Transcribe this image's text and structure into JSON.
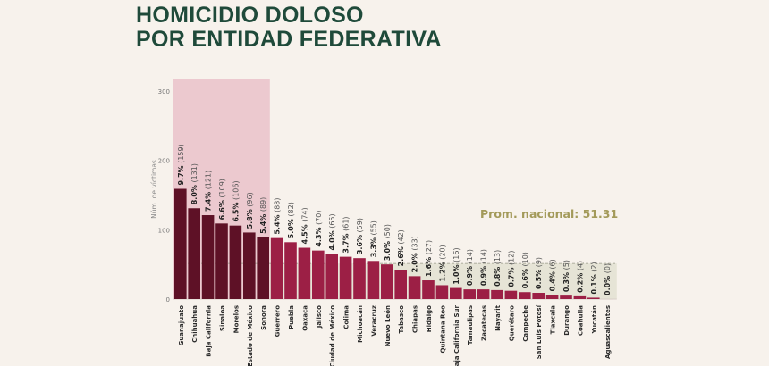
{
  "title": {
    "line1": "HOMICIDIO DOLOSO",
    "line2": "POR ENTIDAD FEDERATIVA"
  },
  "chart_data": {
    "type": "bar",
    "title": "HOMICIDIO DOLOSO POR ENTIDAD FEDERATIVA",
    "ylabel": "Núm. de víctimas",
    "xlabel": "",
    "ylim": [
      0,
      300
    ],
    "yticks": [
      "0",
      "100",
      "200",
      "300"
    ],
    "categories": [
      "Guanajuato",
      "Chihuahua",
      "Baja California",
      "Sinaloa",
      "Morelos",
      "Estado de México",
      "Sonora",
      "Guerrero",
      "Puebla",
      "Oaxaca",
      "Jalisco",
      "Ciudad de México",
      "Colima",
      "Michoacán",
      "Veracruz",
      "Nuevo León",
      "Tabasco",
      "Chiapas",
      "Hidalgo",
      "Quintana Roo",
      "Baja California Sur",
      "Tamaulipas",
      "Zacatecas",
      "Nayarit",
      "Querétaro",
      "Campeche",
      "San Luis Potosí",
      "Tlaxcala",
      "Durango",
      "Coahuila",
      "Yucatán",
      "Aguascalientes"
    ],
    "values": [
      159,
      131,
      121,
      109,
      106,
      96,
      89,
      88,
      82,
      74,
      70,
      65,
      61,
      59,
      55,
      50,
      42,
      33,
      27,
      20,
      16,
      14,
      14,
      13,
      12,
      10,
      9,
      6,
      5,
      4,
      2,
      0
    ],
    "percents": [
      "9.7%",
      "8.0%",
      "7.4%",
      "6.6%",
      "6.5%",
      "5.8%",
      "5.4%",
      "5.4%",
      "5.0%",
      "4.5%",
      "4.3%",
      "4.0%",
      "3.7%",
      "3.6%",
      "3.3%",
      "3.0%",
      "2.6%",
      "2.0%",
      "1.6%",
      "1.2%",
      "1.0%",
      "0.9%",
      "0.9%",
      "0.8%",
      "0.7%",
      "0.6%",
      "0.5%",
      "0.4%",
      "0.3%",
      "0.2%",
      "0.1%",
      "0.0%"
    ],
    "highlighted_count": 7,
    "average": {
      "label": "Prom. nacional: 51.31",
      "value": 51.31
    },
    "colors": {
      "top": "#5e1126",
      "rest": "#9c1f45",
      "highlight": "#ecc9cf",
      "average_band": "#e6e4d6",
      "average_text": "#a39a5a"
    }
  }
}
